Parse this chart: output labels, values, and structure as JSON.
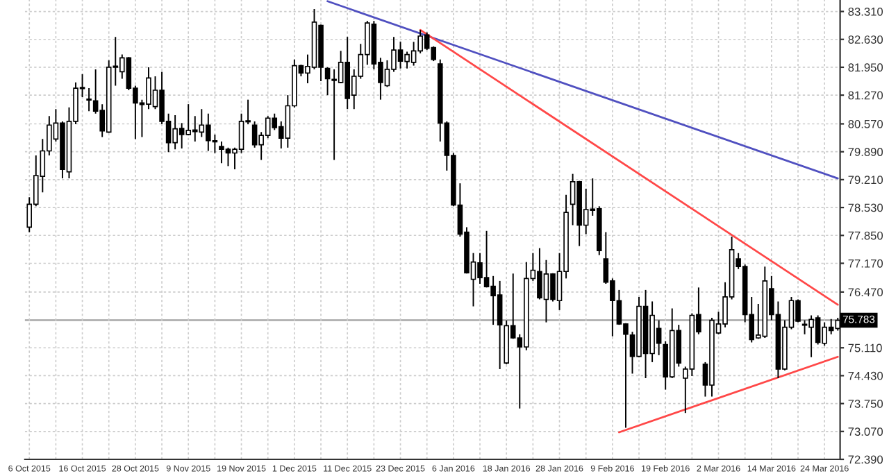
{
  "chart_data": {
    "type": "candlestick",
    "categories": [
      "6 Oct 2015",
      null,
      null,
      null,
      null,
      null,
      null,
      null,
      "16 Oct 2015",
      null,
      null,
      null,
      null,
      null,
      null,
      null,
      "28 Oct 2015",
      null,
      null,
      null,
      null,
      null,
      null,
      null,
      "9 Nov 2015",
      null,
      null,
      null,
      null,
      null,
      null,
      null,
      "19 Nov 2015",
      null,
      null,
      null,
      null,
      null,
      null,
      null,
      "1 Dec 2015",
      null,
      null,
      null,
      null,
      null,
      null,
      null,
      "11 Dec 2015",
      null,
      null,
      null,
      null,
      null,
      null,
      null,
      "23 Dec 2015",
      null,
      null,
      null,
      null,
      null,
      null,
      null,
      "6 Jan 2016",
      null,
      null,
      null,
      null,
      null,
      null,
      null,
      "18 Jan 2016",
      null,
      null,
      null,
      null,
      null,
      null,
      null,
      "28 Jan 2016",
      null,
      null,
      null,
      null,
      null,
      null,
      null,
      "9 Feb 2016",
      null,
      null,
      null,
      null,
      null,
      null,
      null,
      "19 Feb 2016",
      null,
      null,
      null,
      null,
      null,
      null,
      null,
      "2 Mar 2016",
      null,
      null,
      null,
      null,
      null,
      null,
      null,
      "14 Mar 2016",
      null,
      null,
      null,
      null,
      null,
      null,
      null,
      "24 Mar 2016",
      null,
      null
    ],
    "ohlc": [
      [
        78.05,
        78.78,
        77.93,
        78.61
      ],
      [
        78.61,
        79.8,
        78.56,
        79.31
      ],
      [
        79.29,
        80.2,
        78.9,
        79.91
      ],
      [
        79.91,
        80.76,
        79.8,
        80.54
      ],
      [
        80.2,
        80.93,
        80.14,
        80.59
      ],
      [
        80.59,
        80.63,
        79.24,
        79.46
      ],
      [
        79.4,
        80.97,
        79.24,
        80.63
      ],
      [
        80.63,
        81.58,
        80.56,
        81.44
      ],
      [
        81.43,
        81.78,
        81.22,
        81.45
      ],
      [
        81.17,
        81.44,
        80.88,
        81.15
      ],
      [
        81.13,
        81.9,
        80.82,
        80.88
      ],
      [
        80.9,
        81.05,
        80.25,
        80.4
      ],
      [
        80.37,
        82.12,
        80.35,
        81.95
      ],
      [
        81.95,
        82.69,
        81.5,
        81.97
      ],
      [
        81.84,
        82.26,
        81.67,
        82.18
      ],
      [
        82.18,
        82.2,
        81.39,
        81.44
      ],
      [
        81.44,
        81.5,
        80.2,
        81.08
      ],
      [
        81.08,
        81.16,
        80.25,
        81.04
      ],
      [
        81.05,
        81.95,
        80.93,
        81.69
      ],
      [
        80.99,
        81.73,
        80.93,
        81.39
      ],
      [
        81.39,
        81.84,
        80.56,
        80.63
      ],
      [
        80.63,
        80.82,
        79.88,
        80.11
      ],
      [
        80.11,
        80.78,
        79.95,
        80.45
      ],
      [
        80.46,
        80.59,
        79.97,
        80.31
      ],
      [
        80.31,
        81.05,
        80.29,
        80.41
      ],
      [
        80.42,
        80.76,
        80.14,
        80.38
      ],
      [
        80.37,
        80.93,
        80.25,
        80.54
      ],
      [
        80.54,
        80.82,
        79.91,
        80.16
      ],
      [
        80.16,
        80.31,
        79.86,
        80.13
      ],
      [
        80.02,
        80.14,
        79.61,
        79.95
      ],
      [
        79.95,
        79.99,
        79.54,
        79.86
      ],
      [
        79.86,
        79.99,
        79.46,
        79.95
      ],
      [
        79.95,
        80.82,
        79.86,
        80.63
      ],
      [
        80.64,
        81.16,
        80.56,
        80.62
      ],
      [
        80.54,
        80.63,
        79.99,
        80.06
      ],
      [
        80.06,
        80.37,
        79.69,
        80.29
      ],
      [
        80.29,
        80.76,
        80.22,
        80.71
      ],
      [
        80.71,
        80.82,
        80.42,
        80.48
      ],
      [
        80.5,
        80.63,
        79.97,
        80.22
      ],
      [
        80.22,
        81.27,
        79.99,
        81.01
      ],
      [
        81.01,
        82.14,
        80.97,
        81.99
      ],
      [
        81.99,
        82.01,
        81.73,
        81.81
      ],
      [
        81.81,
        82.26,
        81.56,
        81.97
      ],
      [
        81.95,
        83.37,
        81.9,
        83.05
      ],
      [
        82.97,
        82.99,
        81.61,
        81.95
      ],
      [
        81.92,
        81.95,
        81.27,
        81.67
      ],
      [
        81.65,
        81.9,
        79.69,
        81.63
      ],
      [
        81.58,
        82.35,
        81.56,
        82.07
      ],
      [
        82.07,
        82.69,
        80.93,
        81.19
      ],
      [
        81.27,
        81.9,
        80.93,
        81.73
      ],
      [
        81.73,
        82.52,
        81.67,
        82.26
      ],
      [
        82.26,
        83.08,
        82.01,
        83.03
      ],
      [
        83.0,
        83.08,
        81.9,
        82.03
      ],
      [
        82.07,
        82.18,
        81.16,
        81.58
      ],
      [
        81.5,
        82.12,
        81.47,
        81.9
      ],
      [
        81.9,
        82.69,
        81.84,
        82.37
      ],
      [
        82.37,
        82.57,
        81.92,
        82.1
      ],
      [
        82.09,
        82.33,
        81.92,
        82.26
      ],
      [
        82.07,
        82.57,
        81.99,
        82.35
      ],
      [
        82.35,
        82.86,
        82.29,
        82.71
      ],
      [
        82.74,
        82.8,
        82.37,
        82.41
      ],
      [
        82.43,
        82.46,
        82.1,
        82.14
      ],
      [
        82.03,
        82.14,
        80.14,
        80.59
      ],
      [
        80.59,
        80.63,
        79.43,
        79.8
      ],
      [
        79.8,
        79.86,
        78.56,
        78.59
      ],
      [
        78.59,
        79.12,
        77.82,
        77.88
      ],
      [
        77.93,
        78.05,
        76.92,
        76.94
      ],
      [
        76.78,
        77.42,
        76.12,
        77.2
      ],
      [
        77.18,
        77.42,
        76.67,
        76.82
      ],
      [
        76.82,
        77.96,
        76.58,
        76.6
      ],
      [
        76.61,
        76.86,
        75.67,
        76.38
      ],
      [
        76.4,
        76.74,
        74.59,
        75.67
      ],
      [
        74.74,
        75.78,
        74.71,
        75.65
      ],
      [
        75.65,
        76.92,
        75.33,
        75.35
      ],
      [
        75.35,
        75.44,
        73.63,
        75.13
      ],
      [
        75.13,
        77.2,
        75.05,
        76.8
      ],
      [
        76.8,
        77.42,
        76.74,
        77.0
      ],
      [
        76.97,
        77.54,
        76.29,
        76.33
      ],
      [
        76.29,
        77.25,
        75.73,
        76.91
      ],
      [
        76.91,
        76.93,
        76.24,
        76.29
      ],
      [
        76.26,
        77.42,
        76.03,
        76.97
      ],
      [
        76.97,
        78.84,
        76.8,
        78.41
      ],
      [
        78.61,
        79.35,
        78.1,
        79.16
      ],
      [
        79.16,
        79.18,
        77.59,
        78.1
      ],
      [
        78.1,
        78.99,
        77.88,
        78.48
      ],
      [
        78.49,
        79.24,
        78.33,
        78.46
      ],
      [
        78.5,
        78.56,
        77.37,
        77.48
      ],
      [
        77.28,
        77.93,
        76.67,
        76.71
      ],
      [
        76.74,
        76.8,
        75.39,
        76.26
      ],
      [
        76.26,
        76.52,
        75.67,
        75.69
      ],
      [
        75.69,
        75.71,
        73.16,
        75.44
      ],
      [
        75.42,
        75.5,
        74.48,
        74.9
      ],
      [
        74.9,
        76.35,
        74.88,
        76.12
      ],
      [
        76.12,
        76.52,
        74.37,
        74.97
      ],
      [
        74.97,
        76.24,
        74.76,
        75.9
      ],
      [
        75.58,
        75.78,
        74.93,
        75.22
      ],
      [
        75.19,
        75.27,
        74.09,
        74.4
      ],
      [
        74.4,
        76.07,
        74.37,
        75.53
      ],
      [
        75.53,
        75.67,
        74.65,
        74.74
      ],
      [
        74.37,
        74.65,
        73.52,
        74.59
      ],
      [
        74.59,
        75.95,
        74.42,
        75.9
      ],
      [
        75.92,
        76.58,
        75.44,
        75.5
      ],
      [
        74.71,
        74.76,
        73.92,
        74.2
      ],
      [
        74.2,
        75.84,
        73.92,
        75.78
      ],
      [
        75.47,
        75.99,
        75.44,
        75.69
      ],
      [
        75.69,
        76.71,
        75.61,
        76.35
      ],
      [
        76.35,
        77.82,
        76.29,
        77.5
      ],
      [
        77.28,
        77.42,
        77.03,
        77.09
      ],
      [
        77.09,
        77.14,
        75.73,
        75.92
      ],
      [
        75.92,
        76.35,
        75.24,
        75.31
      ],
      [
        75.35,
        76.18,
        75.33,
        75.42
      ],
      [
        75.39,
        77.09,
        75.35,
        76.74
      ],
      [
        76.55,
        76.86,
        75.78,
        75.92
      ],
      [
        75.92,
        76.24,
        74.37,
        74.59
      ],
      [
        74.59,
        75.78,
        74.56,
        75.61
      ],
      [
        75.61,
        76.35,
        75.56,
        76.26
      ],
      [
        76.26,
        76.29,
        75.73,
        75.76
      ],
      [
        75.68,
        75.78,
        75.44,
        75.66
      ],
      [
        75.61,
        75.9,
        74.88,
        75.8
      ],
      [
        75.84,
        75.9,
        75.19,
        75.24
      ],
      [
        75.22,
        75.73,
        75.16,
        75.61
      ],
      [
        75.61,
        75.81,
        75.44,
        75.53
      ],
      [
        75.58,
        75.84,
        75.53,
        75.78
      ]
    ],
    "series": [
      {
        "type": "line",
        "color": "#5050c0",
        "values": [
          null,
          null,
          null,
          null,
          null,
          null,
          null,
          null,
          null,
          null,
          null,
          null,
          null,
          null,
          null,
          null,
          null,
          null,
          null,
          null,
          null,
          null,
          null,
          null,
          null,
          null,
          null,
          null,
          null,
          null,
          null,
          null,
          null,
          null,
          null,
          null,
          null,
          null,
          null,
          null,
          null,
          null,
          null,
          null,
          null,
          83.56,
          null,
          null,
          null,
          null,
          null,
          null,
          null,
          null,
          null,
          null,
          null,
          null,
          null,
          null,
          null,
          null,
          null,
          null,
          null,
          null,
          null,
          null,
          null,
          null,
          null,
          null,
          null,
          null,
          null,
          null,
          null,
          null,
          null,
          null,
          null,
          null,
          null,
          null,
          null,
          null,
          null,
          null,
          null,
          null,
          null,
          null,
          null,
          null,
          null,
          null,
          null,
          null,
          null,
          null,
          null,
          null,
          null,
          null,
          null,
          null,
          null,
          null,
          null,
          null,
          null,
          null,
          null,
          null,
          null,
          null,
          null,
          null,
          null,
          null,
          null,
          null,
          79.24
        ]
      },
      {
        "type": "line",
        "color": "#ff4848",
        "values": [
          null,
          null,
          null,
          null,
          null,
          null,
          null,
          null,
          null,
          null,
          null,
          null,
          null,
          null,
          null,
          null,
          null,
          null,
          null,
          null,
          null,
          null,
          null,
          null,
          null,
          null,
          null,
          null,
          null,
          null,
          null,
          null,
          null,
          null,
          null,
          null,
          null,
          null,
          null,
          null,
          null,
          null,
          null,
          null,
          null,
          null,
          null,
          null,
          null,
          null,
          null,
          null,
          null,
          null,
          null,
          null,
          null,
          null,
          null,
          82.86,
          null,
          null,
          null,
          null,
          null,
          null,
          null,
          null,
          null,
          null,
          null,
          null,
          null,
          null,
          null,
          null,
          null,
          null,
          null,
          null,
          null,
          null,
          null,
          null,
          null,
          null,
          null,
          null,
          null,
          null,
          null,
          null,
          null,
          null,
          null,
          null,
          null,
          null,
          null,
          null,
          null,
          null,
          null,
          null,
          null,
          null,
          null,
          null,
          null,
          null,
          null,
          null,
          null,
          null,
          null,
          null,
          null,
          null,
          null,
          null,
          null,
          null,
          76.16
        ]
      },
      {
        "type": "line",
        "color": "#ff4848",
        "values": [
          null,
          null,
          null,
          null,
          null,
          null,
          null,
          null,
          null,
          null,
          null,
          null,
          null,
          null,
          null,
          null,
          null,
          null,
          null,
          null,
          null,
          null,
          null,
          null,
          null,
          null,
          null,
          null,
          null,
          null,
          null,
          null,
          null,
          null,
          null,
          null,
          null,
          null,
          null,
          null,
          null,
          null,
          null,
          null,
          null,
          null,
          null,
          null,
          null,
          null,
          null,
          null,
          null,
          null,
          null,
          null,
          null,
          null,
          null,
          null,
          null,
          null,
          null,
          null,
          null,
          null,
          null,
          null,
          null,
          null,
          null,
          null,
          null,
          null,
          null,
          null,
          null,
          null,
          null,
          null,
          null,
          null,
          null,
          null,
          null,
          null,
          null,
          null,
          null,
          73.05,
          null,
          null,
          null,
          null,
          null,
          null,
          null,
          null,
          null,
          null,
          null,
          null,
          null,
          null,
          null,
          null,
          null,
          null,
          null,
          null,
          null,
          null,
          null,
          null,
          null,
          null,
          null,
          null,
          null,
          null,
          null,
          null,
          74.89
        ]
      }
    ],
    "ylim": [
      72.39,
      83.59
    ],
    "yticks": [
      {
        "value": 72.39,
        "label": "72.390"
      },
      {
        "value": 73.07,
        "label": "73.070"
      },
      {
        "value": 73.75,
        "label": "73.750"
      },
      {
        "value": 74.43,
        "label": "74.430"
      },
      {
        "value": 75.11,
        "label": "75.110"
      },
      {
        "value": 76.47,
        "label": "76.470"
      },
      {
        "value": 77.17,
        "label": "77.170"
      },
      {
        "value": 77.85,
        "label": "77.850"
      },
      {
        "value": 78.53,
        "label": "78.530"
      },
      {
        "value": 79.21,
        "label": "79.210"
      },
      {
        "value": 79.89,
        "label": "79.890"
      },
      {
        "value": 80.57,
        "label": "80.570"
      },
      {
        "value": 81.27,
        "label": "81.270"
      },
      {
        "value": 81.95,
        "label": "81.950"
      },
      {
        "value": 82.63,
        "label": "82.630"
      },
      {
        "value": 83.31,
        "label": "83.310"
      }
    ],
    "ref_lines": [
      {
        "axis": "y",
        "value": 75.783,
        "label": "75.783",
        "color": "#a0a0a0"
      }
    ],
    "grid": true,
    "line_style": "solid"
  }
}
